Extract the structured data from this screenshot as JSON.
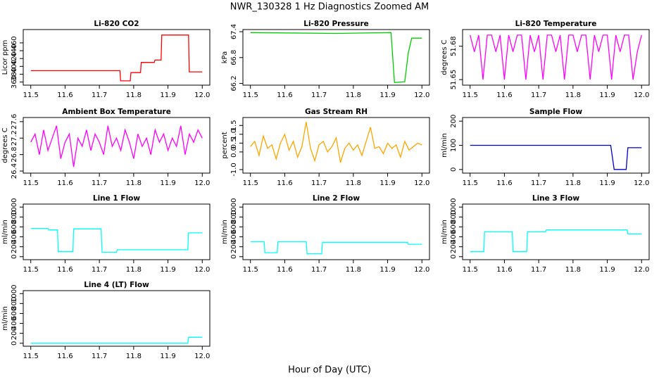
{
  "title": "NWR_130328  1 Hz Diagnostics Zoomed AM",
  "xlabel": "Hour of Day (UTC)",
  "chart_data": [
    {
      "type": "line",
      "title": "Li-820 CO2",
      "ylabel": "Licor ppm",
      "xlim": [
        11.478,
        12.022
      ],
      "xticks": [
        11.5,
        11.6,
        11.7,
        11.8,
        11.9,
        {
          "value": 12,
          "label": "12.0"
        }
      ],
      "ylim": [
        352,
        494
      ],
      "yticks": [
        360,
        380,
        400,
        420,
        440,
        460
      ],
      "series": [
        {
          "color": "#ff0000",
          "x": [
            11.5,
            11.76,
            11.762,
            11.79,
            11.792,
            11.82,
            11.822,
            11.86,
            11.862,
            11.88,
            11.882,
            11.96,
            11.962,
            12.0
          ],
          "values": [
            389,
            389,
            363,
            363,
            384,
            384,
            410,
            410,
            416,
            416,
            480,
            480,
            386,
            386
          ]
        }
      ]
    },
    {
      "type": "line",
      "title": "Li-820 Pressure",
      "ylabel": "kPa",
      "xlim": [
        11.478,
        12.022
      ],
      "xticks": [
        11.5,
        11.6,
        11.7,
        11.8,
        11.9,
        {
          "value": 12,
          "label": "12.0"
        }
      ],
      "ylim": [
        66.16,
        67.45
      ],
      "yticks": [
        66.2,
        66.8,
        67.4
      ],
      "series": [
        {
          "color": "#00cc00",
          "x": [
            11.5,
            11.75,
            11.91,
            11.92,
            11.95,
            11.96,
            11.97,
            12.0
          ],
          "values": [
            67.38,
            67.36,
            67.38,
            66.22,
            66.24,
            66.9,
            67.25,
            67.25
          ]
        }
      ]
    },
    {
      "type": "line",
      "title": "Li-820 Temperature",
      "ylabel": "degrees C",
      "xlim": [
        11.478,
        12.022
      ],
      "xticks": [
        11.5,
        11.6,
        11.7,
        11.8,
        11.9,
        {
          "value": 12,
          "label": "12.0"
        }
      ],
      "ylim": [
        51.645,
        51.695
      ],
      "yticks": [
        51.65,
        51.68
      ],
      "series": [
        {
          "color": "#ff00ff",
          "x": [
            11.5,
            11.5125,
            11.525,
            11.5375,
            11.55,
            11.5625,
            11.575,
            11.5875,
            11.6,
            11.6125,
            11.625,
            11.6375,
            11.65,
            11.6625,
            11.675,
            11.6875,
            11.7,
            11.7125,
            11.725,
            11.7375,
            11.75,
            11.7625,
            11.775,
            11.7875,
            11.8,
            11.8125,
            11.825,
            11.8375,
            11.85,
            11.8625,
            11.875,
            11.8875,
            11.9,
            11.9125,
            11.925,
            11.9375,
            11.95,
            11.9625,
            11.975,
            11.9875,
            12.0
          ],
          "values": [
            51.69,
            51.675,
            51.69,
            51.65,
            51.69,
            51.69,
            51.675,
            51.69,
            51.65,
            51.69,
            51.675,
            51.69,
            51.69,
            51.65,
            51.69,
            51.675,
            51.69,
            51.65,
            51.69,
            51.69,
            51.675,
            51.69,
            51.65,
            51.69,
            51.69,
            51.675,
            51.69,
            51.69,
            51.65,
            51.69,
            51.675,
            51.69,
            51.69,
            51.65,
            51.69,
            51.675,
            51.69,
            51.69,
            51.65,
            51.675,
            51.69
          ]
        }
      ]
    },
    {
      "type": "line",
      "title": "Ambient Box Temperature",
      "ylabel": "degrees C",
      "xlim": [
        11.478,
        12.022
      ],
      "xticks": [
        11.5,
        11.6,
        11.7,
        11.8,
        11.9,
        {
          "value": 12,
          "label": "12.0"
        }
      ],
      "ylim": [
        26.35,
        27.7
      ],
      "yticks": [
        26.4,
        26.8,
        27.2,
        27.6
      ],
      "series": [
        {
          "color": "#ff00ff",
          "x": [
            11.5,
            11.5125,
            11.525,
            11.5375,
            11.55,
            11.5625,
            11.575,
            11.5875,
            11.6,
            11.6125,
            11.625,
            11.6375,
            11.65,
            11.6625,
            11.675,
            11.6875,
            11.7,
            11.7125,
            11.725,
            11.7375,
            11.75,
            11.7625,
            11.775,
            11.7875,
            11.8,
            11.8125,
            11.825,
            11.8375,
            11.85,
            11.8625,
            11.875,
            11.8875,
            11.9,
            11.9125,
            11.925,
            11.9375,
            11.95,
            11.9625,
            11.975,
            11.9875,
            12.0
          ],
          "values": [
            27.1,
            27.3,
            26.8,
            27.4,
            26.9,
            27.2,
            27.5,
            26.7,
            27.1,
            27.3,
            26.5,
            27.2,
            27.0,
            27.4,
            26.9,
            27.3,
            27.1,
            26.8,
            27.5,
            27.0,
            27.2,
            26.9,
            27.4,
            27.1,
            26.7,
            27.3,
            27.0,
            27.2,
            26.8,
            27.4,
            27.1,
            27.3,
            26.9,
            27.2,
            27.0,
            27.5,
            26.8,
            27.3,
            27.1,
            27.4,
            27.2
          ]
        }
      ]
    },
    {
      "type": "line",
      "title": "Gas Stream RH",
      "ylabel": "percent",
      "xlim": [
        11.478,
        12.022
      ],
      "xticks": [
        11.5,
        11.6,
        11.7,
        11.8,
        11.9,
        {
          "value": 12,
          "label": "12.0"
        }
      ],
      "ylim": [
        -1.2,
        1.95
      ],
      "yticks": [
        {
          "value": -1,
          "label": "-1.0"
        },
        {
          "value": 0,
          "label": "0.0"
        },
        0.5,
        {
          "value": 1,
          "label": "1.0"
        },
        1.5
      ],
      "series": [
        {
          "color": "#ffa500",
          "x": [
            11.5,
            11.5125,
            11.525,
            11.5375,
            11.55,
            11.5625,
            11.575,
            11.5875,
            11.6,
            11.6125,
            11.625,
            11.6375,
            11.65,
            11.6625,
            11.675,
            11.6875,
            11.7,
            11.7125,
            11.725,
            11.7375,
            11.75,
            11.7625,
            11.775,
            11.7875,
            11.8,
            11.8125,
            11.825,
            11.8375,
            11.85,
            11.8625,
            11.875,
            11.8875,
            11.9,
            11.9125,
            11.925,
            11.9375,
            11.95,
            11.9625,
            11.975,
            11.9875,
            12.0
          ],
          "values": [
            0.3,
            0.6,
            -0.2,
            0.9,
            0.2,
            0.4,
            -0.4,
            0.5,
            1.0,
            0.1,
            0.6,
            -0.3,
            0.3,
            1.7,
            0.2,
            -0.5,
            0.4,
            0.6,
            0.0,
            0.3,
            0.8,
            -0.6,
            0.2,
            0.5,
            0.1,
            0.4,
            -0.2,
            0.6,
            1.4,
            0.2,
            0.3,
            -0.1,
            0.5,
            0.2,
            0.4,
            -0.3,
            0.6,
            0.1,
            0.3,
            0.5,
            0.4
          ]
        }
      ]
    },
    {
      "type": "line",
      "title": "Sample Flow",
      "ylabel": "ml/min",
      "xlim": [
        11.478,
        12.022
      ],
      "xticks": [
        11.5,
        11.6,
        11.7,
        11.8,
        11.9,
        {
          "value": 12,
          "label": "12.0"
        }
      ],
      "ylim": [
        -15,
        215
      ],
      "yticks": [
        0,
        100,
        200
      ],
      "series": [
        {
          "color": "#0000cc",
          "x": [
            11.5,
            11.91,
            11.92,
            11.955,
            11.96,
            12.0
          ],
          "values": [
            100,
            100,
            0,
            0,
            90,
            90
          ]
        }
      ]
    },
    {
      "type": "line",
      "title": "Line 1 Flow",
      "ylabel": "ml/min",
      "xlim": [
        11.478,
        12.022
      ],
      "xticks": [
        11.5,
        11.6,
        11.7,
        11.8,
        11.9,
        {
          "value": 12,
          "label": "12.0"
        }
      ],
      "ylim": [
        -60,
        1060
      ],
      "yticks": [
        0,
        200,
        400,
        600,
        800,
        1000
      ],
      "series": [
        {
          "color": "#00ffff",
          "x": [
            11.5,
            11.55,
            11.552,
            11.578,
            11.58,
            11.623,
            11.625,
            11.705,
            11.708,
            11.75,
            11.752,
            11.958,
            11.96,
            12.0
          ],
          "values": [
            570,
            570,
            540,
            540,
            100,
            100,
            560,
            560,
            90,
            90,
            140,
            140,
            480,
            480
          ]
        }
      ]
    },
    {
      "type": "line",
      "title": "Line 2 Flow",
      "ylabel": "ml/min",
      "xlim": [
        11.478,
        12.022
      ],
      "xticks": [
        11.5,
        11.6,
        11.7,
        11.8,
        11.9,
        {
          "value": 12,
          "label": "12.0"
        }
      ],
      "ylim": [
        -60,
        1060
      ],
      "yticks": [
        0,
        200,
        400,
        600,
        800,
        1000
      ],
      "series": [
        {
          "color": "#00ffff",
          "x": [
            11.5,
            11.54,
            11.542,
            11.578,
            11.58,
            11.663,
            11.665,
            11.708,
            11.71,
            11.958,
            11.96,
            12.0
          ],
          "values": [
            300,
            300,
            80,
            80,
            300,
            300,
            60,
            60,
            290,
            290,
            250,
            250
          ]
        }
      ]
    },
    {
      "type": "line",
      "title": "Line 3 Flow",
      "ylabel": "ml/min",
      "xlim": [
        11.478,
        12.022
      ],
      "xticks": [
        11.5,
        11.6,
        11.7,
        11.8,
        11.9,
        {
          "value": 12,
          "label": "12.0"
        }
      ],
      "ylim": [
        -60,
        1060
      ],
      "yticks": [
        0,
        200,
        400,
        600,
        800,
        1000
      ],
      "series": [
        {
          "color": "#00ffff",
          "x": [
            11.5,
            11.54,
            11.542,
            11.623,
            11.625,
            11.665,
            11.667,
            11.72,
            11.722,
            11.958,
            11.96,
            12.0
          ],
          "values": [
            100,
            100,
            500,
            500,
            100,
            100,
            500,
            500,
            540,
            540,
            460,
            460
          ]
        }
      ]
    },
    {
      "type": "line",
      "title": "Line 4 (LT) Flow",
      "ylabel": "ml/min",
      "xlim": [
        11.478,
        12.022
      ],
      "xticks": [
        11.5,
        11.6,
        11.7,
        11.8,
        11.9,
        {
          "value": 12,
          "label": "12.0"
        }
      ],
      "ylim": [
        -60,
        1060
      ],
      "yticks": [
        0,
        200,
        400,
        600,
        800,
        1000
      ],
      "series": [
        {
          "color": "#00ffff",
          "x": [
            11.5,
            11.958,
            11.96,
            12.0
          ],
          "values": [
            0,
            0,
            120,
            120
          ]
        }
      ]
    }
  ]
}
